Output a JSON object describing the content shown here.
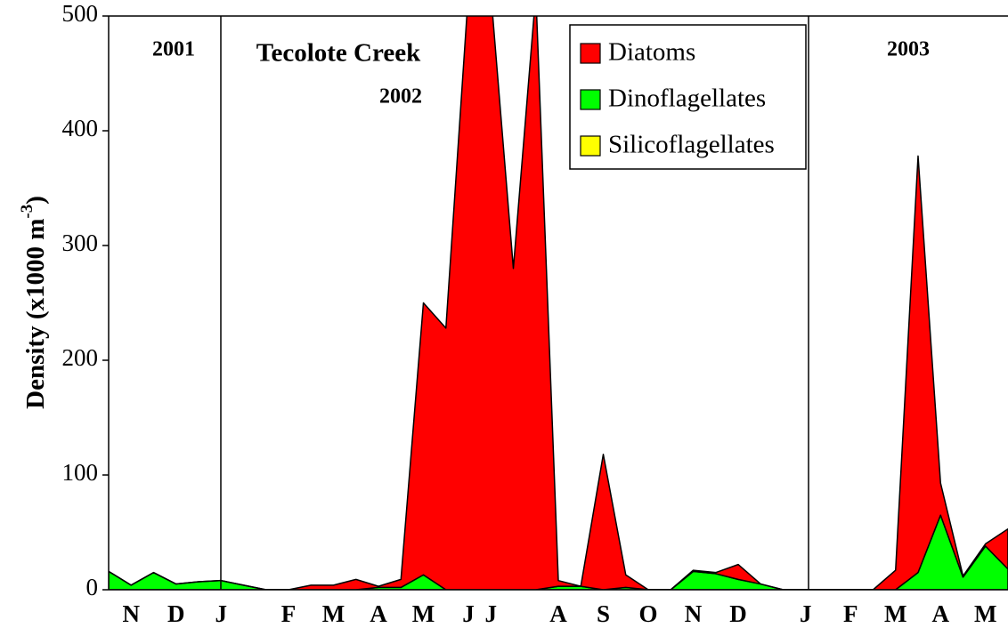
{
  "chart_data": {
    "type": "stacked_area",
    "y_label": "Density (x1000 m",
    "y_label_sup": "-3",
    "y_label_end": ")",
    "annotations": [
      "2001",
      "Tecolote Creek",
      "2002",
      "2003"
    ],
    "categories": [
      null,
      "N",
      null,
      "D",
      null,
      "J",
      null,
      null,
      "F",
      null,
      "M",
      null,
      "A",
      null,
      "M",
      null,
      "J",
      "J",
      null,
      null,
      "A",
      null,
      "S",
      null,
      "O",
      null,
      "N",
      null,
      "D",
      null,
      null,
      "J",
      null,
      "F",
      null,
      "M",
      null,
      "A",
      null,
      "M",
      null
    ],
    "series": [
      {
        "name": "Silicoflagellates",
        "color": "#ffff00",
        "values": [
          0,
          0,
          0,
          0,
          0,
          0,
          0,
          0,
          0,
          0,
          0,
          0,
          0,
          0,
          0,
          0,
          0,
          0,
          0,
          0,
          0,
          0,
          0,
          0,
          0,
          0,
          0,
          0,
          0,
          0,
          0,
          0,
          0,
          0,
          0,
          0,
          0,
          0,
          0,
          0,
          0
        ]
      },
      {
        "name": "Dinoflagellates",
        "color": "#00ff00",
        "values": [
          16,
          4,
          15,
          5,
          7,
          8,
          4,
          0,
          0,
          0,
          0,
          0,
          2,
          2,
          13,
          0,
          0,
          0,
          0,
          0,
          3,
          3,
          0,
          2,
          0,
          0,
          16,
          14,
          9,
          5,
          0,
          0,
          0,
          0,
          0,
          0,
          15,
          65,
          11,
          38,
          18
        ]
      },
      {
        "name": "Diatoms",
        "color": "#ff0000",
        "values": [
          0,
          0,
          0,
          0,
          0,
          0,
          0,
          0,
          0,
          4,
          4,
          9,
          1,
          7,
          237,
          228,
          520,
          520,
          280,
          520,
          5,
          0,
          118,
          11,
          0,
          0,
          1,
          1,
          13,
          0,
          0,
          0,
          0,
          0,
          0,
          17,
          363,
          28,
          1,
          2,
          35
        ]
      }
    ],
    "ylim": [
      0,
      500
    ],
    "yticks": [
      0,
      100,
      200,
      300,
      400,
      500
    ],
    "legend_order": [
      2,
      1,
      0
    ],
    "legend": "top-right"
  }
}
